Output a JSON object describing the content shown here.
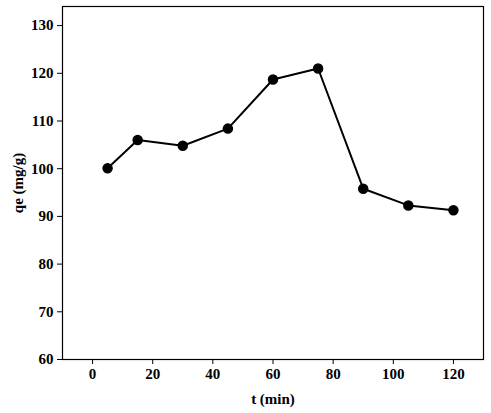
{
  "chart_data": {
    "type": "line",
    "x_label": "t (min)",
    "y_label": "qe (mg/g)",
    "x": [
      5,
      15,
      30,
      45,
      60,
      75,
      90,
      105,
      120
    ],
    "values": [
      100.1,
      106.0,
      104.8,
      108.4,
      118.7,
      121.0,
      95.8,
      92.3,
      91.3
    ],
    "color": "#000000",
    "marker": "circle",
    "line_style": "solid",
    "xlim": [
      -10,
      130
    ],
    "xticks": [
      0,
      20,
      40,
      60,
      80,
      100,
      120
    ],
    "ylim": [
      60,
      134
    ],
    "yticks": [
      60,
      70,
      80,
      90,
      100,
      110,
      120,
      130
    ],
    "grid": false
  }
}
